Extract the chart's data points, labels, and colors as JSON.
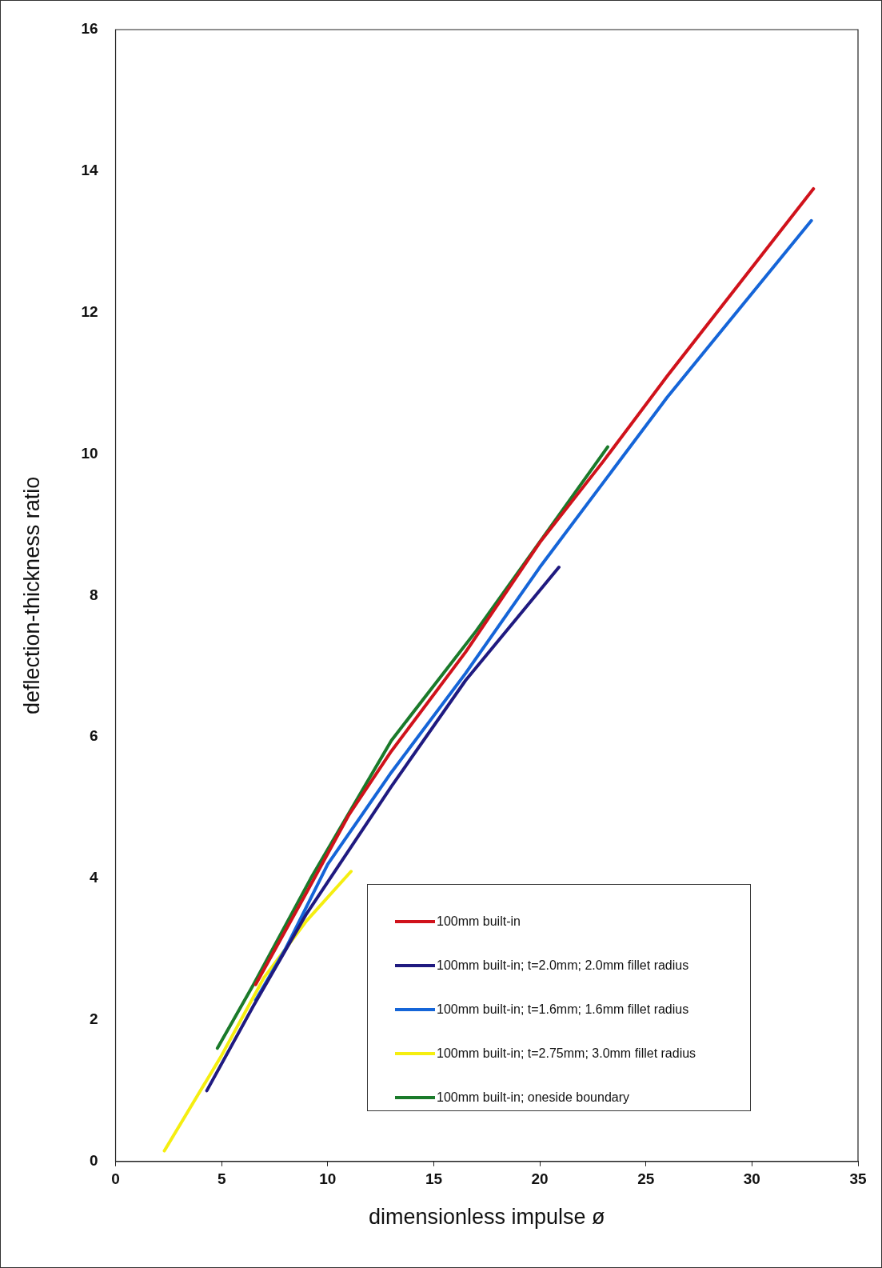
{
  "chart_data": {
    "type": "line",
    "xlabel": "dimensionless impulse ø",
    "ylabel": "deflection-thickness ratio",
    "xlim": [
      0,
      35
    ],
    "xticks": [
      0,
      5,
      10,
      15,
      20,
      25,
      30,
      35
    ],
    "ylim": [
      0,
      16
    ],
    "yticks": [
      0,
      2,
      4,
      6,
      8,
      10,
      12,
      14,
      16
    ],
    "grid": false,
    "legend": "bottom right",
    "marker": "none",
    "line_style": "solid",
    "series": [
      {
        "name": "100mm built-in",
        "color": "#d0121b",
        "x": [
          6.6,
          9,
          11,
          13,
          16.5,
          20,
          23,
          26,
          32.9
        ],
        "values": [
          2.5,
          3.8,
          4.9,
          5.8,
          7.2,
          8.75,
          9.9,
          11.1,
          13.75
        ]
      },
      {
        "name": "100mm built-in; t=2.0mm; 2.0mm fillet radius",
        "color": "#1f1a80",
        "x": [
          4.3,
          6.5,
          9,
          13,
          16.5,
          20.9
        ],
        "values": [
          1.0,
          2.2,
          3.5,
          5.3,
          6.8,
          8.4
        ]
      },
      {
        "name": "100mm built-in; t=1.6mm; 1.6mm fillet radius",
        "color": "#1565d8",
        "x": [
          6.6,
          8,
          10,
          13,
          16.5,
          20,
          26,
          32.8
        ],
        "values": [
          2.28,
          3.0,
          4.2,
          5.5,
          6.9,
          8.4,
          10.8,
          13.3
        ]
      },
      {
        "name": "100mm built-in; t=2.75mm; 3.0mm fillet radius",
        "color": "#f5ee10",
        "x": [
          2.3,
          5,
          7,
          9,
          11.1
        ],
        "values": [
          0.15,
          1.5,
          2.6,
          3.4,
          4.1
        ]
      },
      {
        "name": "100mm built-in; oneside boundary",
        "color": "#1a7a2a",
        "x": [
          4.8,
          6.5,
          9.2,
          13,
          17,
          23.2
        ],
        "values": [
          1.6,
          2.5,
          4.0,
          5.95,
          7.5,
          10.1
        ]
      }
    ]
  }
}
